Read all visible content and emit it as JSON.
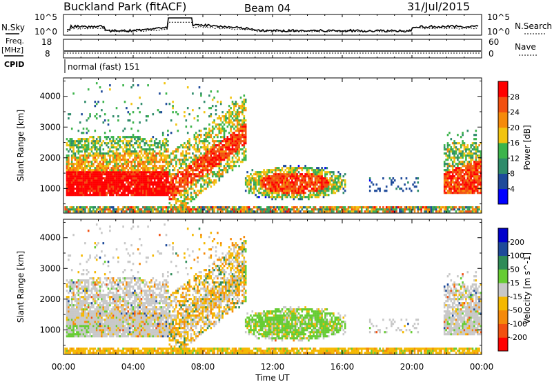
{
  "header": {
    "station": "Buckland Park (fitACF)",
    "beam": "Beam 04",
    "date": "31/Jul/2015"
  },
  "summary": {
    "nsky_label": "N.Sky",
    "nsearch_label": "N.Search",
    "noise_ticks": [
      "10^5",
      "10^0"
    ],
    "freq_label": "Freq.",
    "freq_unit": "[MHz]",
    "freq_ticks": [
      "18",
      "8"
    ],
    "nave_label": "Nave",
    "nave_ticks": [
      "60",
      "0"
    ],
    "cpid_label": "CPID",
    "cpid_value": "normal (fast) 151"
  },
  "chart_data": [
    {
      "type": "heatmap",
      "panel": "power",
      "ylabel": "Slant Range [km]",
      "yticks": [
        1000,
        2000,
        3000,
        4000
      ],
      "ylim": [
        200,
        4600
      ],
      "colorbar_label": "Power [dB]",
      "colorbar_ticks": [
        "4",
        "8",
        "12",
        "16",
        "20",
        "24",
        "28"
      ],
      "colors": [
        "#0000ff",
        "#1e4a9a",
        "#2e8b6a",
        "#3cb44b",
        "#f2c40f",
        "#f58a0a",
        "#f25010",
        "#ff0000"
      ]
    },
    {
      "type": "heatmap",
      "panel": "velocity",
      "ylabel": "Slant Range [km]",
      "yticks": [
        1000,
        2000,
        3000,
        4000
      ],
      "ylim": [
        200,
        4600
      ],
      "colorbar_label": "Velocity [m s^-1]",
      "colorbar_ticks": [
        "-200",
        "-100",
        "-50",
        "-15",
        "15",
        "50",
        "100",
        "200"
      ],
      "colors": [
        "#ff0000",
        "#f25010",
        "#f58a0a",
        "#f5b800",
        "#c8c8c8",
        "#66cc33",
        "#2e8b57",
        "#1e4a9a",
        "#0000cc"
      ]
    }
  ],
  "xaxis": {
    "label": "Time UT",
    "ticks": [
      "00:00",
      "04:00",
      "08:00",
      "12:00",
      "16:00",
      "20:00",
      "00:00"
    ]
  }
}
